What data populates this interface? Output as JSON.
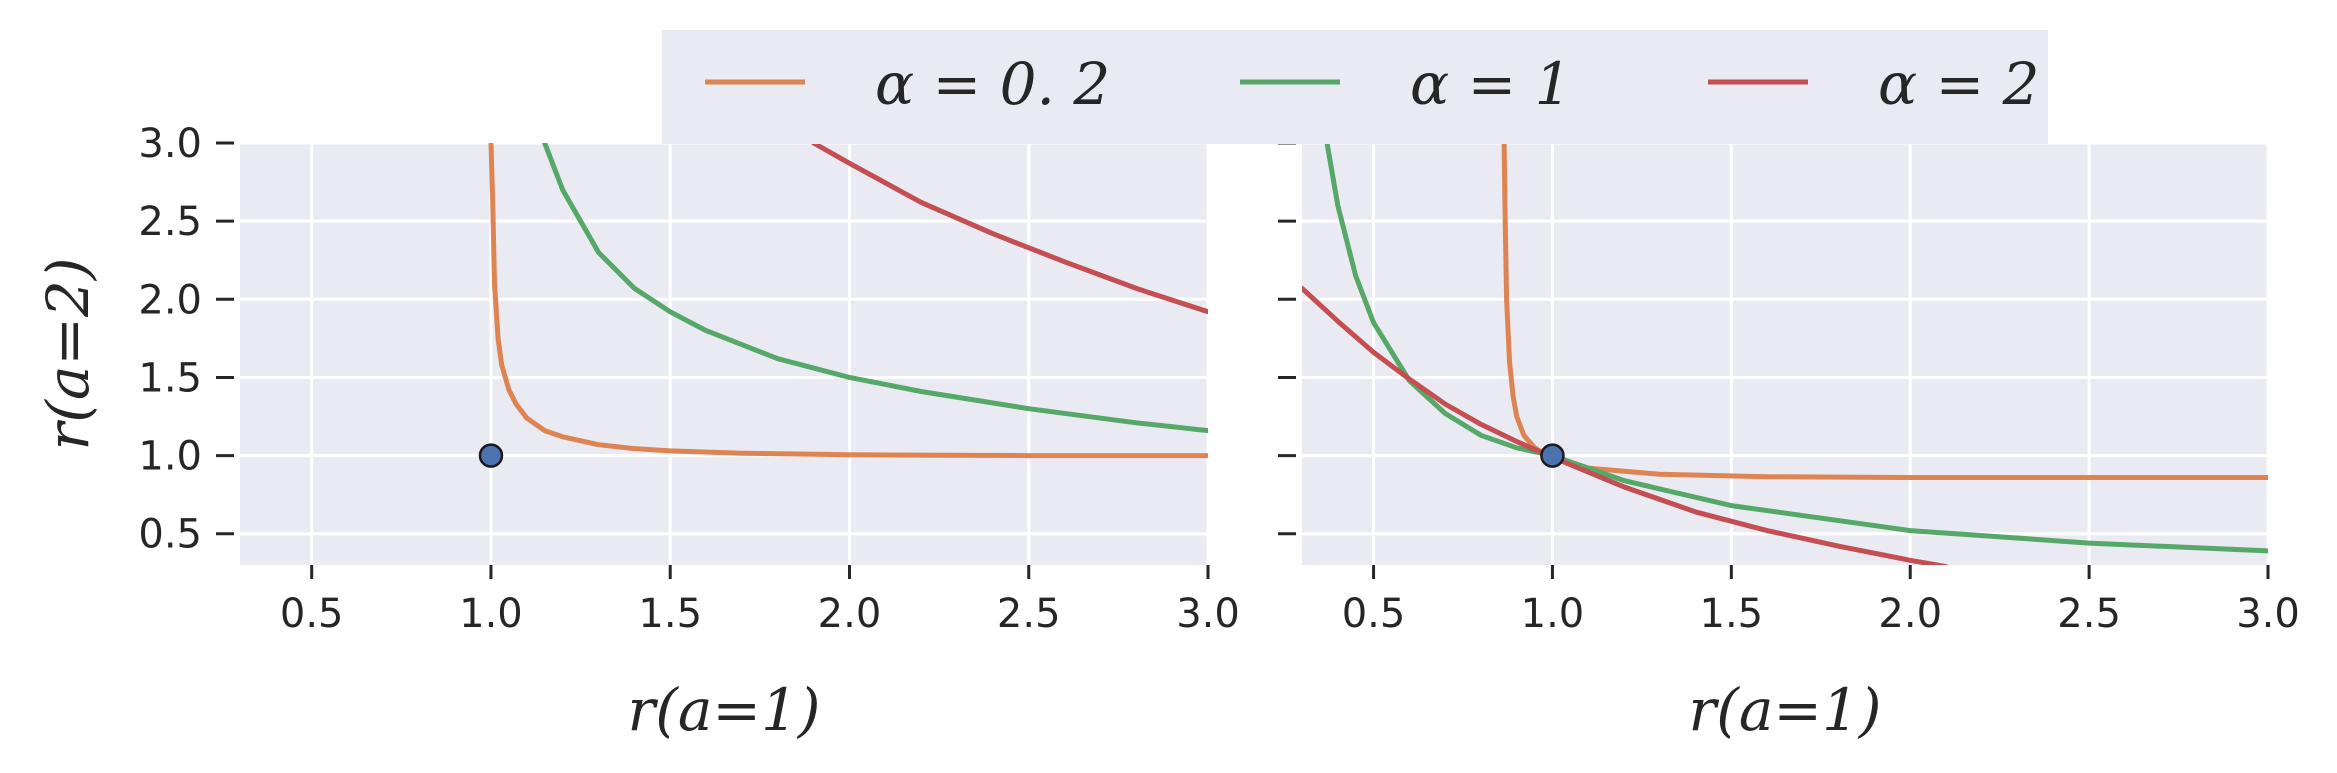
{
  "chart_data": [
    {
      "type": "line",
      "xlabel": "r(a=1)",
      "ylabel": "r(a=2)",
      "xlim": [
        0.3,
        3.0
      ],
      "ylim": [
        0.3,
        3.0
      ],
      "xticks": [
        "0.5",
        "1.0",
        "1.5",
        "2.0",
        "2.5",
        "3.0"
      ],
      "yticks": [
        "0.5",
        "1.0",
        "1.5",
        "2.0",
        "2.5",
        "3.0"
      ],
      "grid": true,
      "marker": {
        "x": 1.0,
        "y": 1.0
      },
      "series": [
        {
          "name": "α = 0.2",
          "color": "#dd8452",
          "x": [
            1.0,
            1.005,
            1.01,
            1.02,
            1.03,
            1.05,
            1.07,
            1.1,
            1.15,
            1.2,
            1.3,
            1.4,
            1.5,
            1.7,
            2.0,
            2.5,
            3.0
          ],
          "y": [
            3.0,
            2.6,
            2.1,
            1.75,
            1.58,
            1.42,
            1.33,
            1.24,
            1.16,
            1.12,
            1.07,
            1.045,
            1.03,
            1.015,
            1.005,
            1.0,
            1.0
          ]
        },
        {
          "name": "α = 1",
          "color": "#55a868",
          "x": [
            1.15,
            1.2,
            1.3,
            1.4,
            1.5,
            1.6,
            1.8,
            2.0,
            2.2,
            2.5,
            2.8,
            3.0
          ],
          "y": [
            3.0,
            2.7,
            2.3,
            2.07,
            1.92,
            1.8,
            1.62,
            1.5,
            1.41,
            1.3,
            1.21,
            1.16
          ]
        },
        {
          "name": "α = 2",
          "color": "#c44e52",
          "x": [
            1.9,
            2.0,
            2.2,
            2.4,
            2.6,
            2.8,
            3.0
          ],
          "y": [
            3.0,
            2.87,
            2.62,
            2.42,
            2.24,
            2.07,
            1.92
          ]
        }
      ]
    },
    {
      "type": "line",
      "xlabel": "r(a=1)",
      "ylabel": "",
      "xlim": [
        0.3,
        3.0
      ],
      "ylim": [
        0.3,
        3.0
      ],
      "xticks": [
        "0.5",
        "1.0",
        "1.5",
        "2.0",
        "2.5",
        "3.0"
      ],
      "grid": true,
      "marker": {
        "x": 1.0,
        "y": 1.0
      },
      "series": [
        {
          "name": "α = 0.2",
          "color": "#dd8452",
          "x": [
            0.865,
            0.868,
            0.872,
            0.88,
            0.89,
            0.9,
            0.92,
            0.95,
            1.0,
            1.1,
            1.3,
            1.6,
            2.0,
            2.5,
            3.0
          ],
          "y": [
            3.0,
            2.5,
            2.0,
            1.6,
            1.38,
            1.25,
            1.13,
            1.05,
            0.98,
            0.92,
            0.88,
            0.865,
            0.86,
            0.86,
            0.86
          ]
        },
        {
          "name": "α = 1",
          "color": "#55a868",
          "x": [
            0.37,
            0.4,
            0.45,
            0.5,
            0.6,
            0.7,
            0.8,
            0.9,
            1.0,
            1.2,
            1.5,
            2.0,
            2.5,
            3.0
          ],
          "y": [
            3.0,
            2.6,
            2.15,
            1.85,
            1.48,
            1.27,
            1.13,
            1.05,
            1.0,
            0.84,
            0.68,
            0.52,
            0.44,
            0.39
          ]
        },
        {
          "name": "α = 2",
          "color": "#c44e52",
          "x": [
            0.3,
            0.4,
            0.5,
            0.6,
            0.7,
            0.8,
            0.9,
            1.0,
            1.2,
            1.4,
            1.6,
            1.8,
            2.0,
            2.1
          ],
          "y": [
            2.07,
            1.86,
            1.66,
            1.49,
            1.33,
            1.2,
            1.09,
            0.99,
            0.8,
            0.64,
            0.52,
            0.42,
            0.33,
            0.29
          ]
        }
      ]
    }
  ],
  "legend": {
    "placement": "top-center",
    "entries": [
      {
        "label": "α = 0. 2",
        "color": "#dd8452"
      },
      {
        "label": "α = 1",
        "color": "#55a868"
      },
      {
        "label": "α = 2",
        "color": "#c44e52"
      }
    ]
  },
  "colors": {
    "axes_bg": "#eaeaf2",
    "grid": "#ffffff",
    "marker_fill": "#4c72b0",
    "marker_edge": "#1a1a1a"
  }
}
